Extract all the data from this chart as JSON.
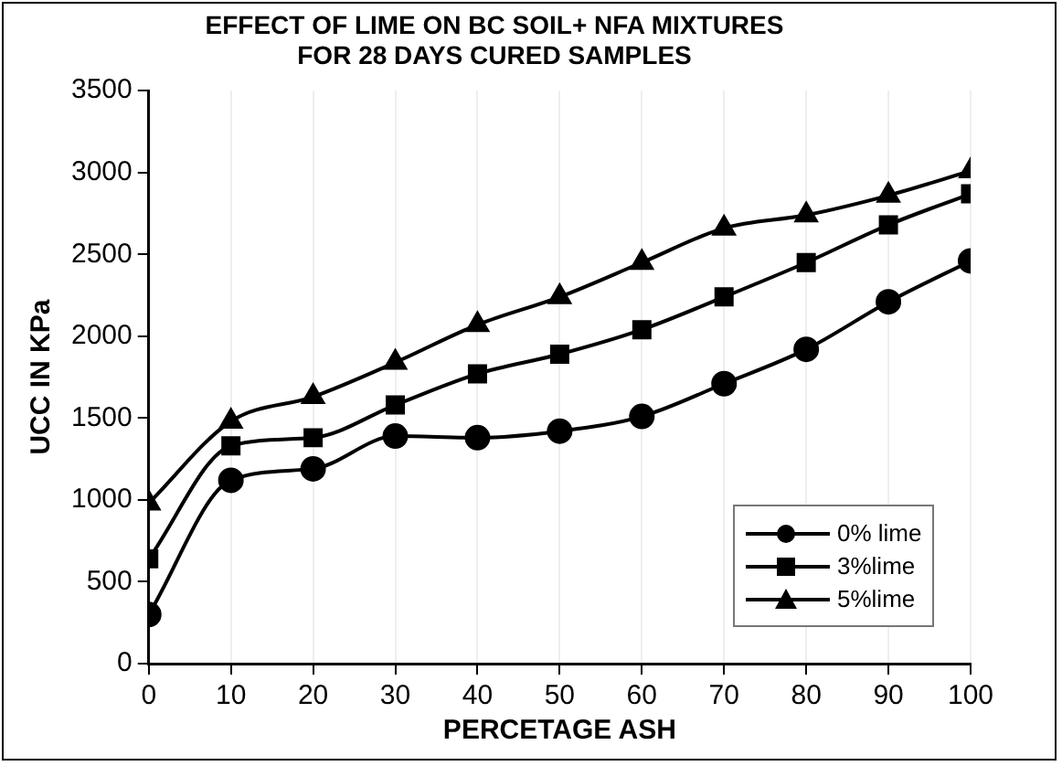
{
  "chart_data": {
    "type": "line",
    "title": "EFFECT OF LIME ON BC SOIL+ NFA MIXTURES\nFOR 28 DAYS CURED SAMPLES",
    "xlabel": "PERCETAGE ASH",
    "ylabel": "UCC IN KPa",
    "x": [
      0,
      10,
      20,
      30,
      40,
      50,
      60,
      70,
      80,
      90,
      100
    ],
    "xlim": [
      0,
      100
    ],
    "xticks": [
      0,
      10,
      20,
      30,
      40,
      50,
      60,
      70,
      80,
      90,
      100
    ],
    "ylim": [
      0,
      3500
    ],
    "yticks": [
      0,
      500,
      1000,
      1500,
      2000,
      2500,
      3000,
      3500
    ],
    "grid": "x",
    "legend": "bottom right",
    "series": [
      {
        "name": "0% lime",
        "color": "#000000",
        "marker": "circle",
        "values": [
          300,
          1120,
          1190,
          1390,
          1380,
          1420,
          1510,
          1710,
          1920,
          2210,
          2460
        ]
      },
      {
        "name": "3%lime",
        "color": "#000000",
        "marker": "square",
        "values": [
          640,
          1330,
          1380,
          1580,
          1770,
          1890,
          2040,
          2240,
          2450,
          2680,
          2870
        ]
      },
      {
        "name": "5%lime",
        "color": "#000000",
        "marker": "triangle",
        "values": [
          980,
          1480,
          1630,
          1840,
          2070,
          2240,
          2450,
          2660,
          2740,
          2860,
          3010
        ]
      }
    ]
  }
}
